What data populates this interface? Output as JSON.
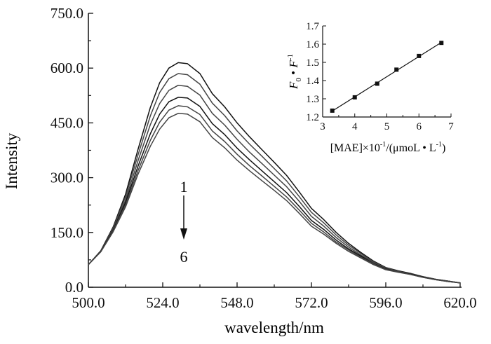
{
  "chart_data": [
    {
      "type": "line",
      "xlabel": "wavelength/nm",
      "ylabel": "Intensity",
      "xlim": [
        500,
        620
      ],
      "ylim": [
        0,
        750
      ],
      "xticks": [
        "500.0",
        "524.0",
        "548.0",
        "572.0",
        "596.0",
        "620.0"
      ],
      "yticks": [
        "0.0",
        "150.0",
        "300.0",
        "450.0",
        "600.0",
        "750.0"
      ],
      "grid": false,
      "annotation": {
        "start": "1",
        "end": "6"
      },
      "line_color": "#1a1a1a",
      "x": [
        500,
        504,
        508,
        512,
        516,
        520,
        523,
        526,
        529,
        532,
        536,
        540,
        544,
        548,
        552,
        556,
        560,
        564,
        568,
        572,
        576,
        580,
        584,
        588,
        592,
        596,
        600,
        604,
        608,
        612,
        616,
        620
      ],
      "series": [
        {
          "values": [
            62,
            100,
            165,
            255,
            377,
            492,
            560,
            600,
            615,
            612,
            585,
            530,
            494,
            450,
            412,
            377,
            342,
            306,
            262,
            216,
            185,
            150,
            120,
            95,
            72,
            54,
            45,
            38,
            29,
            22,
            17,
            12
          ]
        },
        {
          "values": [
            62,
            99,
            162,
            248,
            362,
            469,
            533,
            571,
            585,
            582,
            556,
            504,
            470,
            428,
            392,
            359,
            325,
            291,
            249,
            205,
            176,
            143,
            115,
            92,
            70,
            53,
            44,
            37,
            29,
            22,
            17,
            12
          ]
        },
        {
          "values": [
            62,
            99,
            159,
            239,
            346,
            445,
            503,
            539,
            553,
            550,
            526,
            476,
            444,
            405,
            370,
            339,
            307,
            275,
            236,
            194,
            167,
            136,
            110,
            88,
            68,
            51,
            43,
            37,
            28,
            21,
            17,
            12
          ]
        },
        {
          "values": [
            62,
            98,
            156,
            232,
            331,
            420,
            474,
            508,
            520,
            518,
            495,
            448,
            418,
            381,
            349,
            319,
            289,
            259,
            222,
            183,
            158,
            129,
            105,
            85,
            65,
            50,
            42,
            36,
            28,
            21,
            16,
            12
          ]
        },
        {
          "values": [
            62,
            97,
            154,
            226,
            319,
            402,
            452,
            485,
            497,
            494,
            473,
            428,
            399,
            364,
            333,
            305,
            276,
            247,
            212,
            175,
            151,
            124,
            102,
            82,
            64,
            49,
            42,
            35,
            27,
            21,
            16,
            12
          ]
        },
        {
          "values": [
            62,
            97,
            152,
            220,
            309,
            386,
            433,
            464,
            476,
            474,
            453,
            410,
            382,
            348,
            319,
            292,
            265,
            237,
            203,
            167,
            145,
            120,
            98,
            80,
            62,
            48,
            41,
            35,
            27,
            21,
            16,
            12
          ]
        }
      ]
    },
    {
      "type": "scatter",
      "fit_line": true,
      "xlim": [
        3,
        7
      ],
      "ylim": [
        1.2,
        1.7
      ],
      "xticks": [
        "3",
        "4",
        "5",
        "6",
        "7"
      ],
      "yticks": [
        "1.2",
        "1.3",
        "1.4",
        "1.5",
        "1.6",
        "1.7"
      ],
      "xlabel_parts": {
        "main": "[MAE]×10",
        "sup1": "-1",
        "mid": "/(μmoL • L",
        "sup2": "-1",
        "end": ")"
      },
      "ylabel_parts": {
        "f": "F",
        "sub": "0",
        "dot": " • ",
        "f2": "F",
        "sup": "-1"
      },
      "points": [
        {
          "x": 3.3,
          "y": 1.235
        },
        {
          "x": 4.0,
          "y": 1.308
        },
        {
          "x": 4.7,
          "y": 1.383
        },
        {
          "x": 5.3,
          "y": 1.46
        },
        {
          "x": 6.0,
          "y": 1.535
        },
        {
          "x": 6.7,
          "y": 1.607
        }
      ]
    }
  ]
}
